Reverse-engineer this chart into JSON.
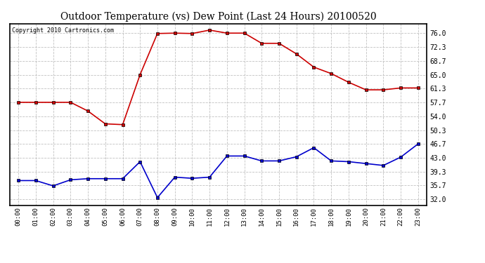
{
  "title": "Outdoor Temperature (vs) Dew Point (Last 24 Hours) 20100520",
  "copyright_text": "Copyright 2010 Cartronics.com",
  "hours": [
    "00:00",
    "01:00",
    "02:00",
    "03:00",
    "04:00",
    "05:00",
    "06:00",
    "07:00",
    "08:00",
    "09:00",
    "10:00",
    "11:00",
    "12:00",
    "13:00",
    "14:00",
    "15:00",
    "16:00",
    "17:00",
    "18:00",
    "19:00",
    "20:00",
    "21:00",
    "22:00",
    "23:00"
  ],
  "temp": [
    57.7,
    57.7,
    57.7,
    57.7,
    55.4,
    52.0,
    51.8,
    65.0,
    75.9,
    76.0,
    75.9,
    76.8,
    76.0,
    76.0,
    73.3,
    73.3,
    70.5,
    67.0,
    65.3,
    63.0,
    61.0,
    61.0,
    61.5,
    61.5
  ],
  "dew": [
    37.0,
    37.0,
    35.6,
    37.2,
    37.5,
    37.5,
    37.5,
    42.0,
    32.5,
    37.9,
    37.6,
    37.9,
    43.5,
    43.5,
    42.2,
    42.2,
    43.3,
    45.7,
    42.2,
    42.0,
    41.5,
    41.0,
    43.2,
    46.7
  ],
  "temp_color": "#cc0000",
  "dew_color": "#0000cc",
  "bg_color": "#ffffff",
  "grid_color": "#bbbbbb",
  "yticks": [
    32.0,
    35.7,
    39.3,
    43.0,
    46.7,
    50.3,
    54.0,
    57.7,
    61.3,
    65.0,
    68.7,
    72.3,
    76.0
  ],
  "ylim": [
    30.5,
    78.5
  ],
  "xlim": [
    -0.5,
    23.5
  ]
}
